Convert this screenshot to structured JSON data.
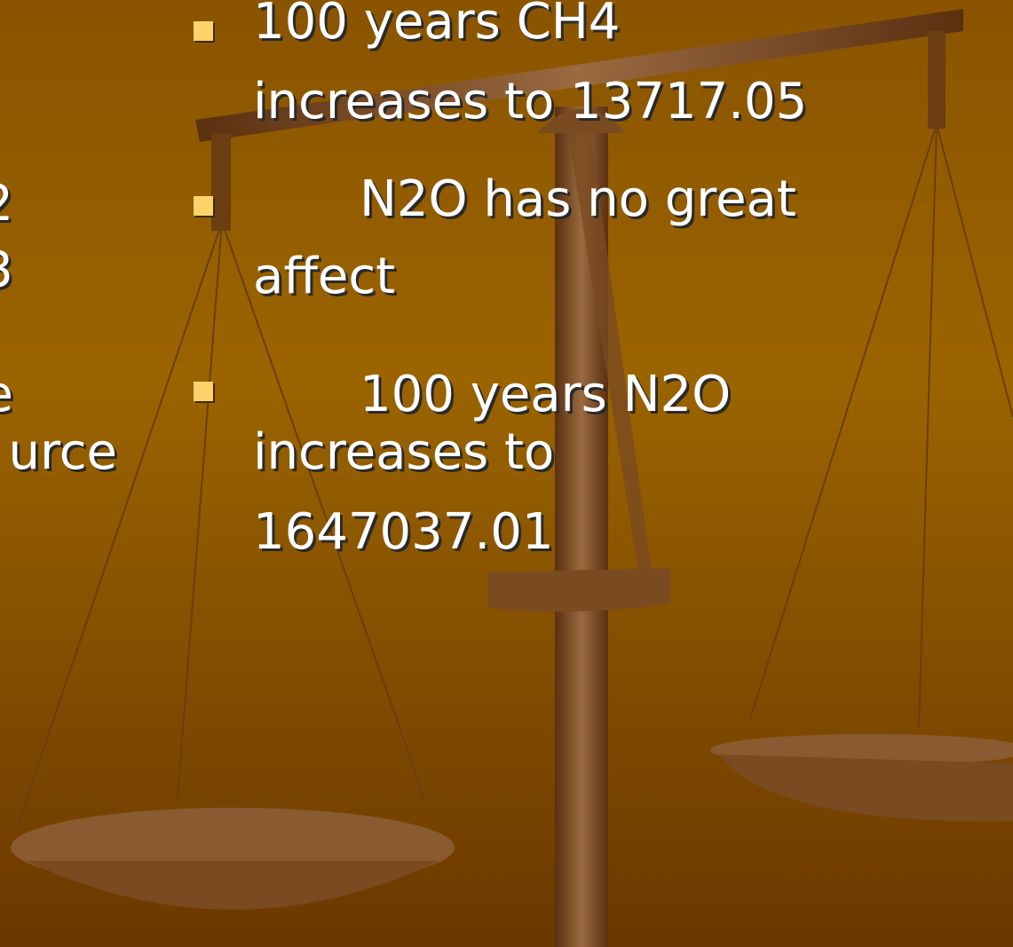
{
  "left_column": {
    "fragments": [
      "2",
      "3",
      "e",
      "urce"
    ]
  },
  "bullets": [
    {
      "lines": [
        "100 years CH4",
        "increases to 13717.05"
      ]
    },
    {
      "lines": [
        "N2O has no great",
        "affect"
      ]
    },
    {
      "lines": [
        "100 years N2O",
        "increases to",
        "1647037.01"
      ]
    }
  ]
}
